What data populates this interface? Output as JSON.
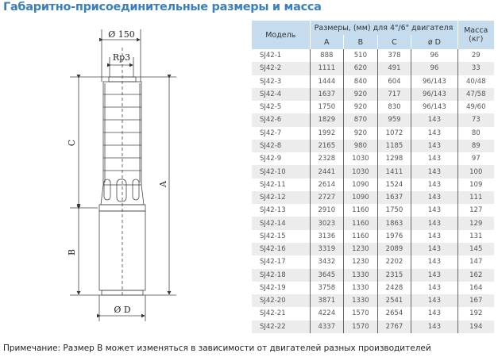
{
  "title": "Габаритно-присоединительные размеры и масса",
  "diagram": {
    "d150": "Ø 150",
    "rp3": "Rp3",
    "c": "C",
    "b": "B",
    "a": "A",
    "dd": "Ø D"
  },
  "table": {
    "header": {
      "model": "Модель",
      "dims": "Размеры, (мм) для 4\"/6\" двигателя",
      "mass": "Масса (кг)",
      "a": "A",
      "b": "B",
      "c": "C",
      "d": "ø D"
    },
    "rows": [
      [
        "SJ42-1",
        "888",
        "510",
        "378",
        "96",
        "29"
      ],
      [
        "SJ42-2",
        "1111",
        "620",
        "491",
        "96",
        "33"
      ],
      [
        "SJ42-3",
        "1444",
        "840",
        "604",
        "96/143",
        "40/48"
      ],
      [
        "SJ42-4",
        "1637",
        "920",
        "717",
        "96/143",
        "47/58"
      ],
      [
        "SJ42-5",
        "1750",
        "920",
        "830",
        "96/143",
        "49/60"
      ],
      [
        "SJ42-6",
        "1829",
        "870",
        "959",
        "143",
        "73"
      ],
      [
        "SJ42-7",
        "1992",
        "920",
        "1072",
        "143",
        "80"
      ],
      [
        "SJ42-8",
        "2165",
        "980",
        "1185",
        "143",
        "89"
      ],
      [
        "SJ42-9",
        "2328",
        "1030",
        "1298",
        "143",
        "97"
      ],
      [
        "SJ42-10",
        "2441",
        "1030",
        "1411",
        "143",
        "100"
      ],
      [
        "SJ42-11",
        "2614",
        "1090",
        "1524",
        "143",
        "109"
      ],
      [
        "SJ42-12",
        "2727",
        "1090",
        "1637",
        "143",
        "111"
      ],
      [
        "SJ42-13",
        "2910",
        "1160",
        "1750",
        "143",
        "127"
      ],
      [
        "SJ42-14",
        "3023",
        "1160",
        "1863",
        "143",
        "129"
      ],
      [
        "SJ42-15",
        "3136",
        "1160",
        "1976",
        "143",
        "131"
      ],
      [
        "SJ42-16",
        "3319",
        "1230",
        "2089",
        "143",
        "145"
      ],
      [
        "SJ42-17",
        "3432",
        "1230",
        "2202",
        "143",
        "147"
      ],
      [
        "SJ42-18",
        "3645",
        "1330",
        "2315",
        "143",
        "162"
      ],
      [
        "SJ42-19",
        "3758",
        "1330",
        "2428",
        "143",
        "164"
      ],
      [
        "SJ42-20",
        "3871",
        "1330",
        "2541",
        "143",
        "167"
      ],
      [
        "SJ42-21",
        "4224",
        "1570",
        "2654",
        "143",
        "192"
      ],
      [
        "SJ42-22",
        "4337",
        "1570",
        "2767",
        "143",
        "194"
      ]
    ]
  },
  "note": "Примечание: Размер B может изменяться в зависимости от двигателей разных производителей"
}
